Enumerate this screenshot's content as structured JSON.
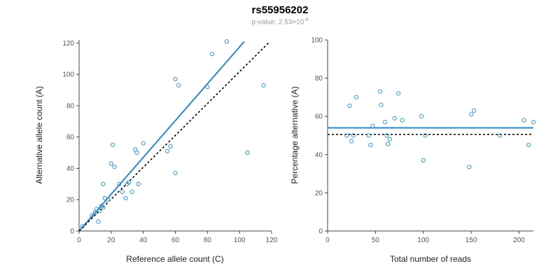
{
  "title": "rs55956202",
  "subtitle": {
    "base": "p-value: 2.53×10",
    "exp": "-4"
  },
  "colors": {
    "accent_line": "#2e86c1",
    "point_stroke": "#4a98c9",
    "dotted_line": "#000000",
    "axis": "#444444",
    "tick_label": "#555555",
    "axis_label": "#222222"
  },
  "chart_data": [
    {
      "type": "scatter",
      "xlabel": "Reference allele count (C)",
      "ylabel": "Alternative allele count (A)",
      "xlim": [
        0,
        120
      ],
      "ylim": [
        0,
        122
      ],
      "xticks": [
        0,
        20,
        40,
        60,
        80,
        100,
        120
      ],
      "yticks": [
        0,
        20,
        40,
        60,
        80,
        100,
        120
      ],
      "legend": "none",
      "grid": false,
      "points": [
        [
          2,
          3
        ],
        [
          8,
          10
        ],
        [
          10,
          12
        ],
        [
          11,
          14
        ],
        [
          12,
          6
        ],
        [
          13,
          13
        ],
        [
          14,
          16
        ],
        [
          15,
          15
        ],
        [
          16,
          21
        ],
        [
          18,
          20
        ],
        [
          15,
          30
        ],
        [
          20,
          43
        ],
        [
          21,
          55
        ],
        [
          22,
          41
        ],
        [
          25,
          30
        ],
        [
          27,
          25
        ],
        [
          29,
          21
        ],
        [
          30,
          30
        ],
        [
          31,
          31
        ],
        [
          33,
          25
        ],
        [
          35,
          52
        ],
        [
          36,
          50
        ],
        [
          37,
          30
        ],
        [
          40,
          56
        ],
        [
          55,
          51
        ],
        [
          57,
          54
        ],
        [
          60,
          37
        ],
        [
          60,
          97
        ],
        [
          62,
          93
        ],
        [
          80,
          92
        ],
        [
          83,
          113
        ],
        [
          92,
          121
        ],
        [
          105,
          50
        ],
        [
          115,
          93
        ]
      ],
      "lines": [
        {
          "name": "regression-line",
          "x1": 0,
          "y1": 0,
          "x2": 103,
          "y2": 121,
          "style": "solid",
          "color": "#2e86c1",
          "width": 2
        },
        {
          "name": "identity-line",
          "x1": 0,
          "y1": 0,
          "x2": 118,
          "y2": 120,
          "style": "dotted",
          "color": "#000000",
          "width": 1.6
        }
      ]
    },
    {
      "type": "scatter",
      "xlabel": "Total number of reads",
      "ylabel": "Percentage alternative (A)",
      "xlim": [
        0,
        215
      ],
      "ylim": [
        0,
        100
      ],
      "xticks": [
        0,
        50,
        100,
        150,
        200
      ],
      "yticks": [
        0,
        20,
        40,
        60,
        80,
        100
      ],
      "legend": "none",
      "grid": false,
      "points": [
        [
          20,
          50
        ],
        [
          23,
          65.5
        ],
        [
          25,
          47
        ],
        [
          27,
          50
        ],
        [
          30,
          70
        ],
        [
          43,
          50
        ],
        [
          45,
          45
        ],
        [
          47,
          55
        ],
        [
          55,
          73
        ],
        [
          56,
          66
        ],
        [
          60,
          57
        ],
        [
          62,
          50
        ],
        [
          63,
          45.5
        ],
        [
          65,
          48
        ],
        [
          70,
          59
        ],
        [
          74,
          72
        ],
        [
          78,
          58
        ],
        [
          98,
          60
        ],
        [
          100,
          37
        ],
        [
          102,
          50
        ],
        [
          148,
          33.5
        ],
        [
          150,
          61
        ],
        [
          153,
          63
        ],
        [
          180,
          50
        ],
        [
          205,
          58
        ],
        [
          210,
          45
        ],
        [
          215,
          57
        ]
      ],
      "lines": [
        {
          "name": "mean-percentage-line",
          "x1": 0,
          "y1": 54,
          "x2": 215,
          "y2": 54,
          "style": "solid",
          "color": "#2e86c1",
          "width": 2
        },
        {
          "name": "expected-percentage-line",
          "x1": 0,
          "y1": 50.5,
          "x2": 215,
          "y2": 50.5,
          "style": "dotted",
          "color": "#000000",
          "width": 1.6
        }
      ]
    }
  ]
}
